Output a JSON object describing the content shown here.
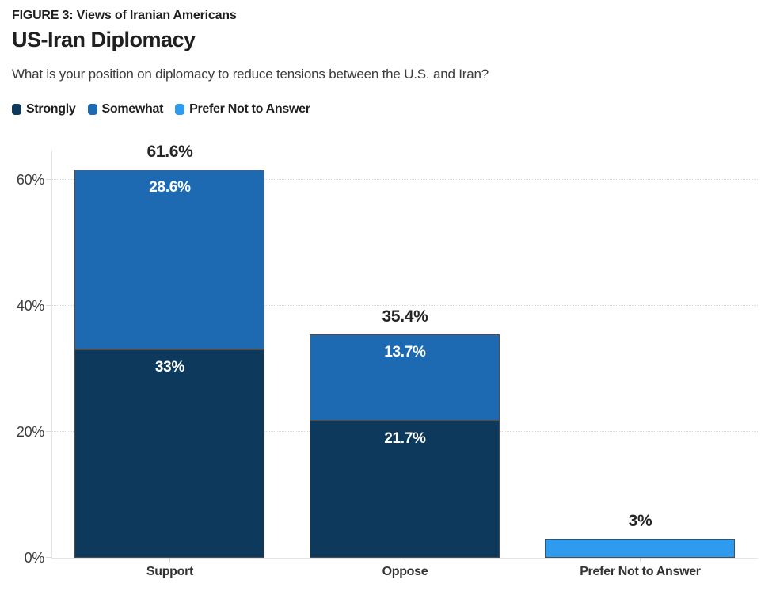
{
  "header": {
    "figure_label": "FIGURE 3: Views of Iranian Americans",
    "title": "US-Iran Diplomacy",
    "subtitle": "What is your position on diplomacy to reduce tensions between the U.S. and Iran?"
  },
  "legend": [
    {
      "label": "Strongly",
      "color": "#0d3a5c"
    },
    {
      "label": "Somewhat",
      "color": "#1e6ab2"
    },
    {
      "label": "Prefer Not to Answer",
      "color": "#2e9bef"
    }
  ],
  "colors": {
    "strongly": "#0d3a5c",
    "somewhat": "#1e6ab2",
    "prefer_not_to_answer": "#2e9bef",
    "grid": "#dcdcdc",
    "axis": "#e4e4e4"
  },
  "chart_data": {
    "type": "bar",
    "stacked": true,
    "categories": [
      "Support",
      "Oppose",
      "Prefer Not to Answer"
    ],
    "series": [
      {
        "name": "Strongly",
        "color": "#0d3a5c",
        "values": [
          33,
          21.7,
          0
        ],
        "labels": [
          "33%",
          "21.7%",
          ""
        ]
      },
      {
        "name": "Somewhat",
        "color": "#1e6ab2",
        "values": [
          28.6,
          13.7,
          0
        ],
        "labels": [
          "28.6%",
          "13.7%",
          ""
        ]
      },
      {
        "name": "Prefer Not to Answer",
        "color": "#2e9bef",
        "values": [
          0,
          0,
          3
        ],
        "labels": [
          "",
          "",
          ""
        ]
      }
    ],
    "totals": [
      "61.6%",
      "35.4%",
      "3%"
    ],
    "title": "US-Iran Diplomacy",
    "xlabel": "",
    "ylabel": "",
    "yticks": [
      {
        "label": "0%",
        "value": 0
      },
      {
        "label": "20%",
        "value": 20
      },
      {
        "label": "40%",
        "value": 40
      },
      {
        "label": "60%",
        "value": 60
      }
    ],
    "ylim": [
      0,
      64.6
    ],
    "grid": "horizontal-dotted",
    "legend_position": "top"
  }
}
